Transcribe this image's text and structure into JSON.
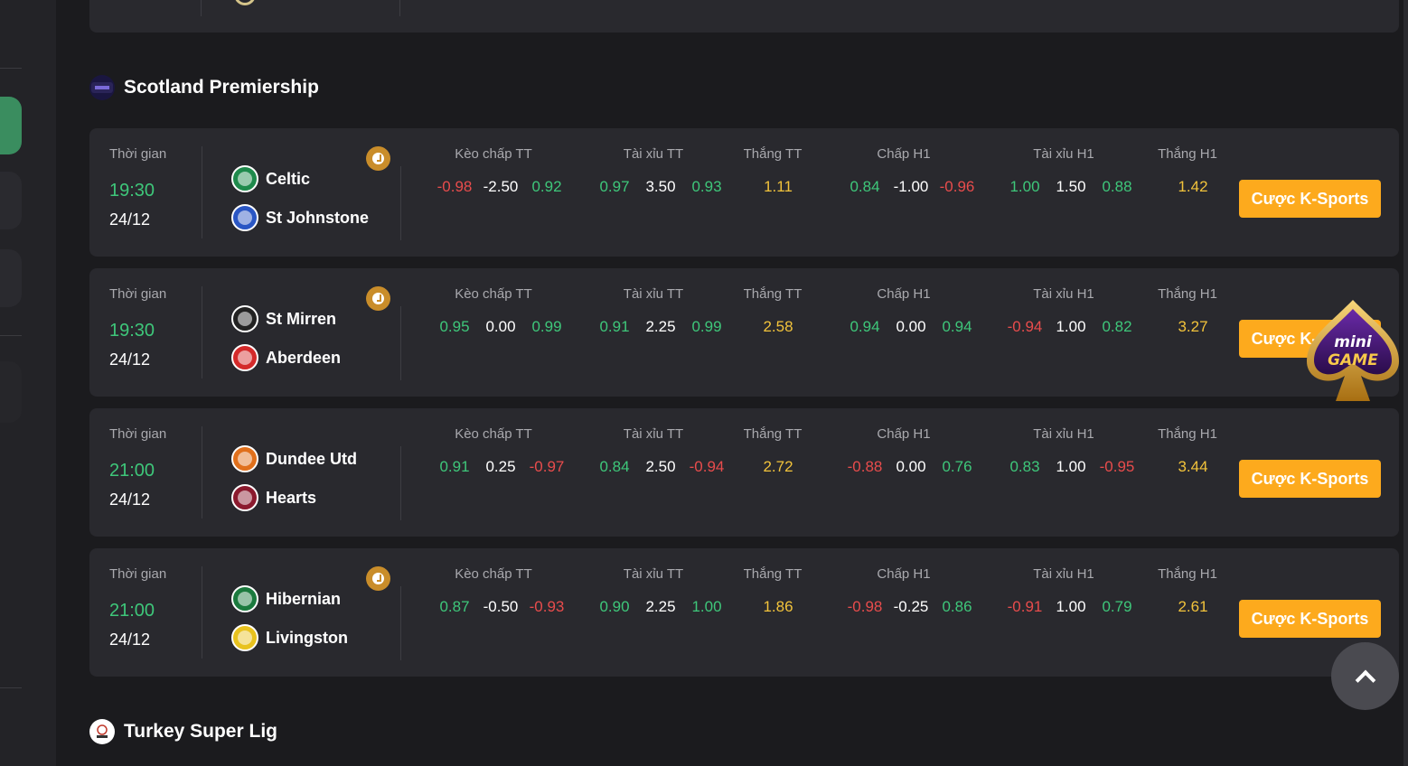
{
  "leagues": {
    "scotland": {
      "title": "Scotland Premiership",
      "logo_icon": "spfl-logo-icon"
    },
    "turkey": {
      "title": "Turkey Super Lig",
      "logo_icon": "super-lig-logo-icon"
    }
  },
  "columns": {
    "time": "Thời gian",
    "keo_chap_tt": "Kèo chấp TT",
    "tai_xiu_tt": "Tài xỉu TT",
    "thang_tt": "Thắng TT",
    "chap_h1": "Chấp H1",
    "tai_xiu_h1": "Tài xỉu H1",
    "thang_h1": "Thắng H1"
  },
  "bet_label": "Cược K-Sports",
  "colors": {
    "accent": "#fdaa1d",
    "positive": "#3ec77a",
    "negative": "#e84c4c",
    "highlight": "#f2c33b"
  },
  "matches": [
    {
      "time": "19:30",
      "date": "24/12",
      "has_clock": true,
      "home": {
        "name": "Celtic",
        "badge_color": "#1f8a4c"
      },
      "away": {
        "name": "St Johnstone",
        "badge_color": "#2a56c4"
      },
      "keo_chap_tt": [
        "-0.98",
        "-2.50",
        "0.92"
      ],
      "tai_xiu_tt": [
        "0.97",
        "3.50",
        "0.93"
      ],
      "thang_tt": "1.11",
      "chap_h1": [
        "0.84",
        "-1.00",
        "-0.96"
      ],
      "tai_xiu_h1": [
        "1.00",
        "1.50",
        "0.88"
      ],
      "thang_h1": "1.42"
    },
    {
      "time": "19:30",
      "date": "24/12",
      "has_clock": true,
      "home": {
        "name": "St Mirren",
        "badge_color": "#222222"
      },
      "away": {
        "name": "Aberdeen",
        "badge_color": "#d42a2a"
      },
      "keo_chap_tt": [
        "0.95",
        "0.00",
        "0.99"
      ],
      "tai_xiu_tt": [
        "0.91",
        "2.25",
        "0.99"
      ],
      "thang_tt": "2.58",
      "chap_h1": [
        "0.94",
        "0.00",
        "0.94"
      ],
      "tai_xiu_h1": [
        "-0.94",
        "1.00",
        "0.82"
      ],
      "thang_h1": "3.27"
    },
    {
      "time": "21:00",
      "date": "24/12",
      "has_clock": false,
      "home": {
        "name": "Dundee Utd",
        "badge_color": "#e0701c"
      },
      "away": {
        "name": "Hearts",
        "badge_color": "#8b1a2e"
      },
      "keo_chap_tt": [
        "0.91",
        "0.25",
        "-0.97"
      ],
      "tai_xiu_tt": [
        "0.84",
        "2.50",
        "-0.94"
      ],
      "thang_tt": "2.72",
      "chap_h1": [
        "-0.88",
        "0.00",
        "0.76"
      ],
      "tai_xiu_h1": [
        "0.83",
        "1.00",
        "-0.95"
      ],
      "thang_h1": "3.44"
    },
    {
      "time": "21:00",
      "date": "24/12",
      "has_clock": true,
      "home": {
        "name": "Hibernian",
        "badge_color": "#1b7a3e"
      },
      "away": {
        "name": "Livingston",
        "badge_color": "#e8c21e"
      },
      "keo_chap_tt": [
        "0.87",
        "-0.50",
        "-0.93"
      ],
      "tai_xiu_tt": [
        "0.90",
        "2.25",
        "1.00"
      ],
      "thang_tt": "1.86",
      "chap_h1": [
        "-0.98",
        "-0.25",
        "0.86"
      ],
      "tai_xiu_h1": [
        "-0.91",
        "1.00",
        "0.79"
      ],
      "thang_h1": "2.61"
    }
  ],
  "minigame": {
    "line1": "mini",
    "line2": "GAME"
  },
  "scroll_top_icon": "chevron-up-icon"
}
